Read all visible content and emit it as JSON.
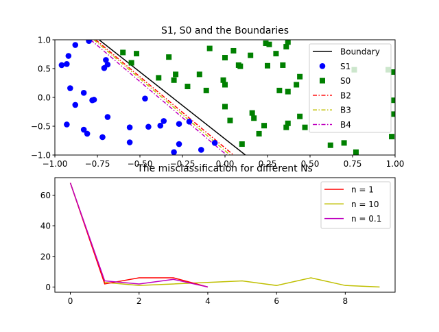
{
  "chart_data": [
    {
      "type": "scatter",
      "title": "S1, S0 and the Boundaries",
      "xlim": [
        -1.0,
        1.0
      ],
      "ylim": [
        -1.0,
        1.0
      ],
      "x_ticks": [
        -1.0,
        -0.75,
        -0.5,
        -0.25,
        0.0,
        0.25,
        0.5,
        0.75,
        1.0
      ],
      "x_tick_labels": [
        "−1.00",
        "−0.75",
        "−0.50",
        "−0.25",
        "0.00",
        "0.25",
        "0.50",
        "0.75",
        "1.00"
      ],
      "y_ticks": [
        -1.0,
        -0.5,
        0.0,
        0.5,
        1.0
      ],
      "y_tick_labels": [
        "−1.0",
        "−0.5",
        "0.0",
        "0.5",
        "1.0"
      ],
      "legend_position": "upper-right",
      "lines": [
        {
          "name": "Boundary",
          "color": "#000000",
          "dash": "solid",
          "points": [
            [
              -0.74,
              1.0
            ],
            [
              0.12,
              -1.0
            ]
          ]
        },
        {
          "name": "B2",
          "color": "#ff0000",
          "dash": "dashdot",
          "points": [
            [
              -0.76,
              1.0
            ],
            [
              0.05,
              -1.0
            ]
          ]
        },
        {
          "name": "B3",
          "color": "#bfbf00",
          "dash": "dashdot",
          "points": [
            [
              -0.77,
              1.0
            ],
            [
              0.03,
              -1.0
            ]
          ]
        },
        {
          "name": "B4",
          "color": "#bf00bf",
          "dash": "dashdot",
          "points": [
            [
              -0.79,
              1.0
            ],
            [
              0.01,
              -1.0
            ]
          ]
        }
      ],
      "series": [
        {
          "name": "S1",
          "color": "#0000ff",
          "marker": "circle",
          "points": [
            [
              -0.96,
              0.56
            ],
            [
              -0.93,
              0.58
            ],
            [
              -0.92,
              0.72
            ],
            [
              -0.88,
              0.91
            ],
            [
              -0.91,
              0.16
            ],
            [
              -0.88,
              -0.13
            ],
            [
              -0.83,
              0.08
            ],
            [
              -0.78,
              -0.05
            ],
            [
              -0.8,
              0.98
            ],
            [
              -0.77,
              -0.04
            ],
            [
              -0.7,
              0.65
            ],
            [
              -0.69,
              0.57
            ],
            [
              -0.71,
              0.51
            ],
            [
              -0.93,
              -0.47
            ],
            [
              -0.83,
              -0.56
            ],
            [
              -0.81,
              -0.63
            ],
            [
              -0.72,
              -0.69
            ],
            [
              -0.69,
              -0.34
            ],
            [
              -0.56,
              -0.52
            ],
            [
              -0.56,
              -0.78
            ],
            [
              -0.47,
              -0.02
            ],
            [
              -0.45,
              -0.51
            ],
            [
              -0.38,
              -0.49
            ],
            [
              -0.36,
              -0.41
            ],
            [
              -0.3,
              -0.95
            ],
            [
              -0.27,
              -0.81
            ],
            [
              -0.27,
              -0.46
            ],
            [
              -0.21,
              -0.42
            ],
            [
              -0.14,
              -0.91
            ],
            [
              -0.06,
              -0.79
            ]
          ]
        },
        {
          "name": "S0",
          "color": "#008000",
          "marker": "square",
          "points": [
            [
              -0.6,
              0.78
            ],
            [
              -0.55,
              0.6
            ],
            [
              -0.52,
              0.76
            ],
            [
              -0.39,
              0.34
            ],
            [
              -0.33,
              0.7
            ],
            [
              -0.3,
              0.3
            ],
            [
              -0.29,
              0.4
            ],
            [
              -0.22,
              0.19
            ],
            [
              -0.15,
              0.4
            ],
            [
              -0.11,
              0.12
            ],
            [
              -0.09,
              0.85
            ],
            [
              -0.01,
              0.3
            ],
            [
              0.0,
              0.22
            ],
            [
              0.0,
              0.69
            ],
            [
              0.0,
              -0.16
            ],
            [
              0.05,
              0.81
            ],
            [
              0.08,
              0.56
            ],
            [
              0.09,
              0.54
            ],
            [
              0.03,
              -0.4
            ],
            [
              0.1,
              -0.81
            ],
            [
              0.15,
              0.73
            ],
            [
              0.16,
              -0.27
            ],
            [
              0.17,
              -0.36
            ],
            [
              0.2,
              -0.63
            ],
            [
              0.23,
              -0.49
            ],
            [
              0.24,
              0.94
            ],
            [
              0.25,
              0.55
            ],
            [
              0.26,
              0.92
            ],
            [
              0.3,
              0.76
            ],
            [
              0.32,
              0.12
            ],
            [
              0.34,
              0.56
            ],
            [
              0.36,
              0.88
            ],
            [
              0.37,
              0.96
            ],
            [
              0.37,
              -0.45
            ],
            [
              0.37,
              0.1
            ],
            [
              0.36,
              -0.52
            ],
            [
              0.42,
              0.22
            ],
            [
              0.44,
              0.36
            ],
            [
              0.44,
              -0.33
            ],
            [
              0.47,
              -0.52
            ],
            [
              0.62,
              -0.83
            ],
            [
              0.7,
              -0.79
            ],
            [
              0.76,
              0.48
            ],
            [
              0.96,
              0.48
            ],
            [
              0.99,
              0.44
            ],
            [
              0.98,
              -0.68
            ],
            [
              0.99,
              -0.29
            ],
            [
              0.99,
              -0.05
            ],
            [
              0.77,
              -0.95
            ]
          ]
        }
      ]
    },
    {
      "type": "line",
      "title": "The misclassification for different Ns",
      "xlim": [
        -0.45,
        9.45
      ],
      "ylim": [
        -3.4,
        71.4
      ],
      "x_ticks": [
        0,
        2,
        4,
        6,
        8
      ],
      "x_tick_labels": [
        "0",
        "2",
        "4",
        "6",
        "8"
      ],
      "y_ticks": [
        0,
        20,
        40,
        60
      ],
      "y_tick_labels": [
        "0",
        "20",
        "40",
        "60"
      ],
      "legend_position": "upper-right",
      "series": [
        {
          "name": "n = 1",
          "color": "#ff0000",
          "x": [
            0,
            1,
            2,
            3,
            4
          ],
          "values": [
            68,
            2,
            6,
            6,
            0
          ]
        },
        {
          "name": "n = 10",
          "color": "#bfbf00",
          "x": [
            0,
            1,
            2,
            3,
            4,
            5,
            6,
            7,
            8,
            9
          ],
          "values": [
            68,
            3,
            1,
            2,
            3,
            4,
            1,
            6,
            1,
            0
          ]
        },
        {
          "name": "n = 0.1",
          "color": "#bf00bf",
          "x": [
            0,
            1,
            2,
            3,
            4
          ],
          "values": [
            68,
            4,
            2,
            5,
            0
          ]
        }
      ]
    }
  ]
}
